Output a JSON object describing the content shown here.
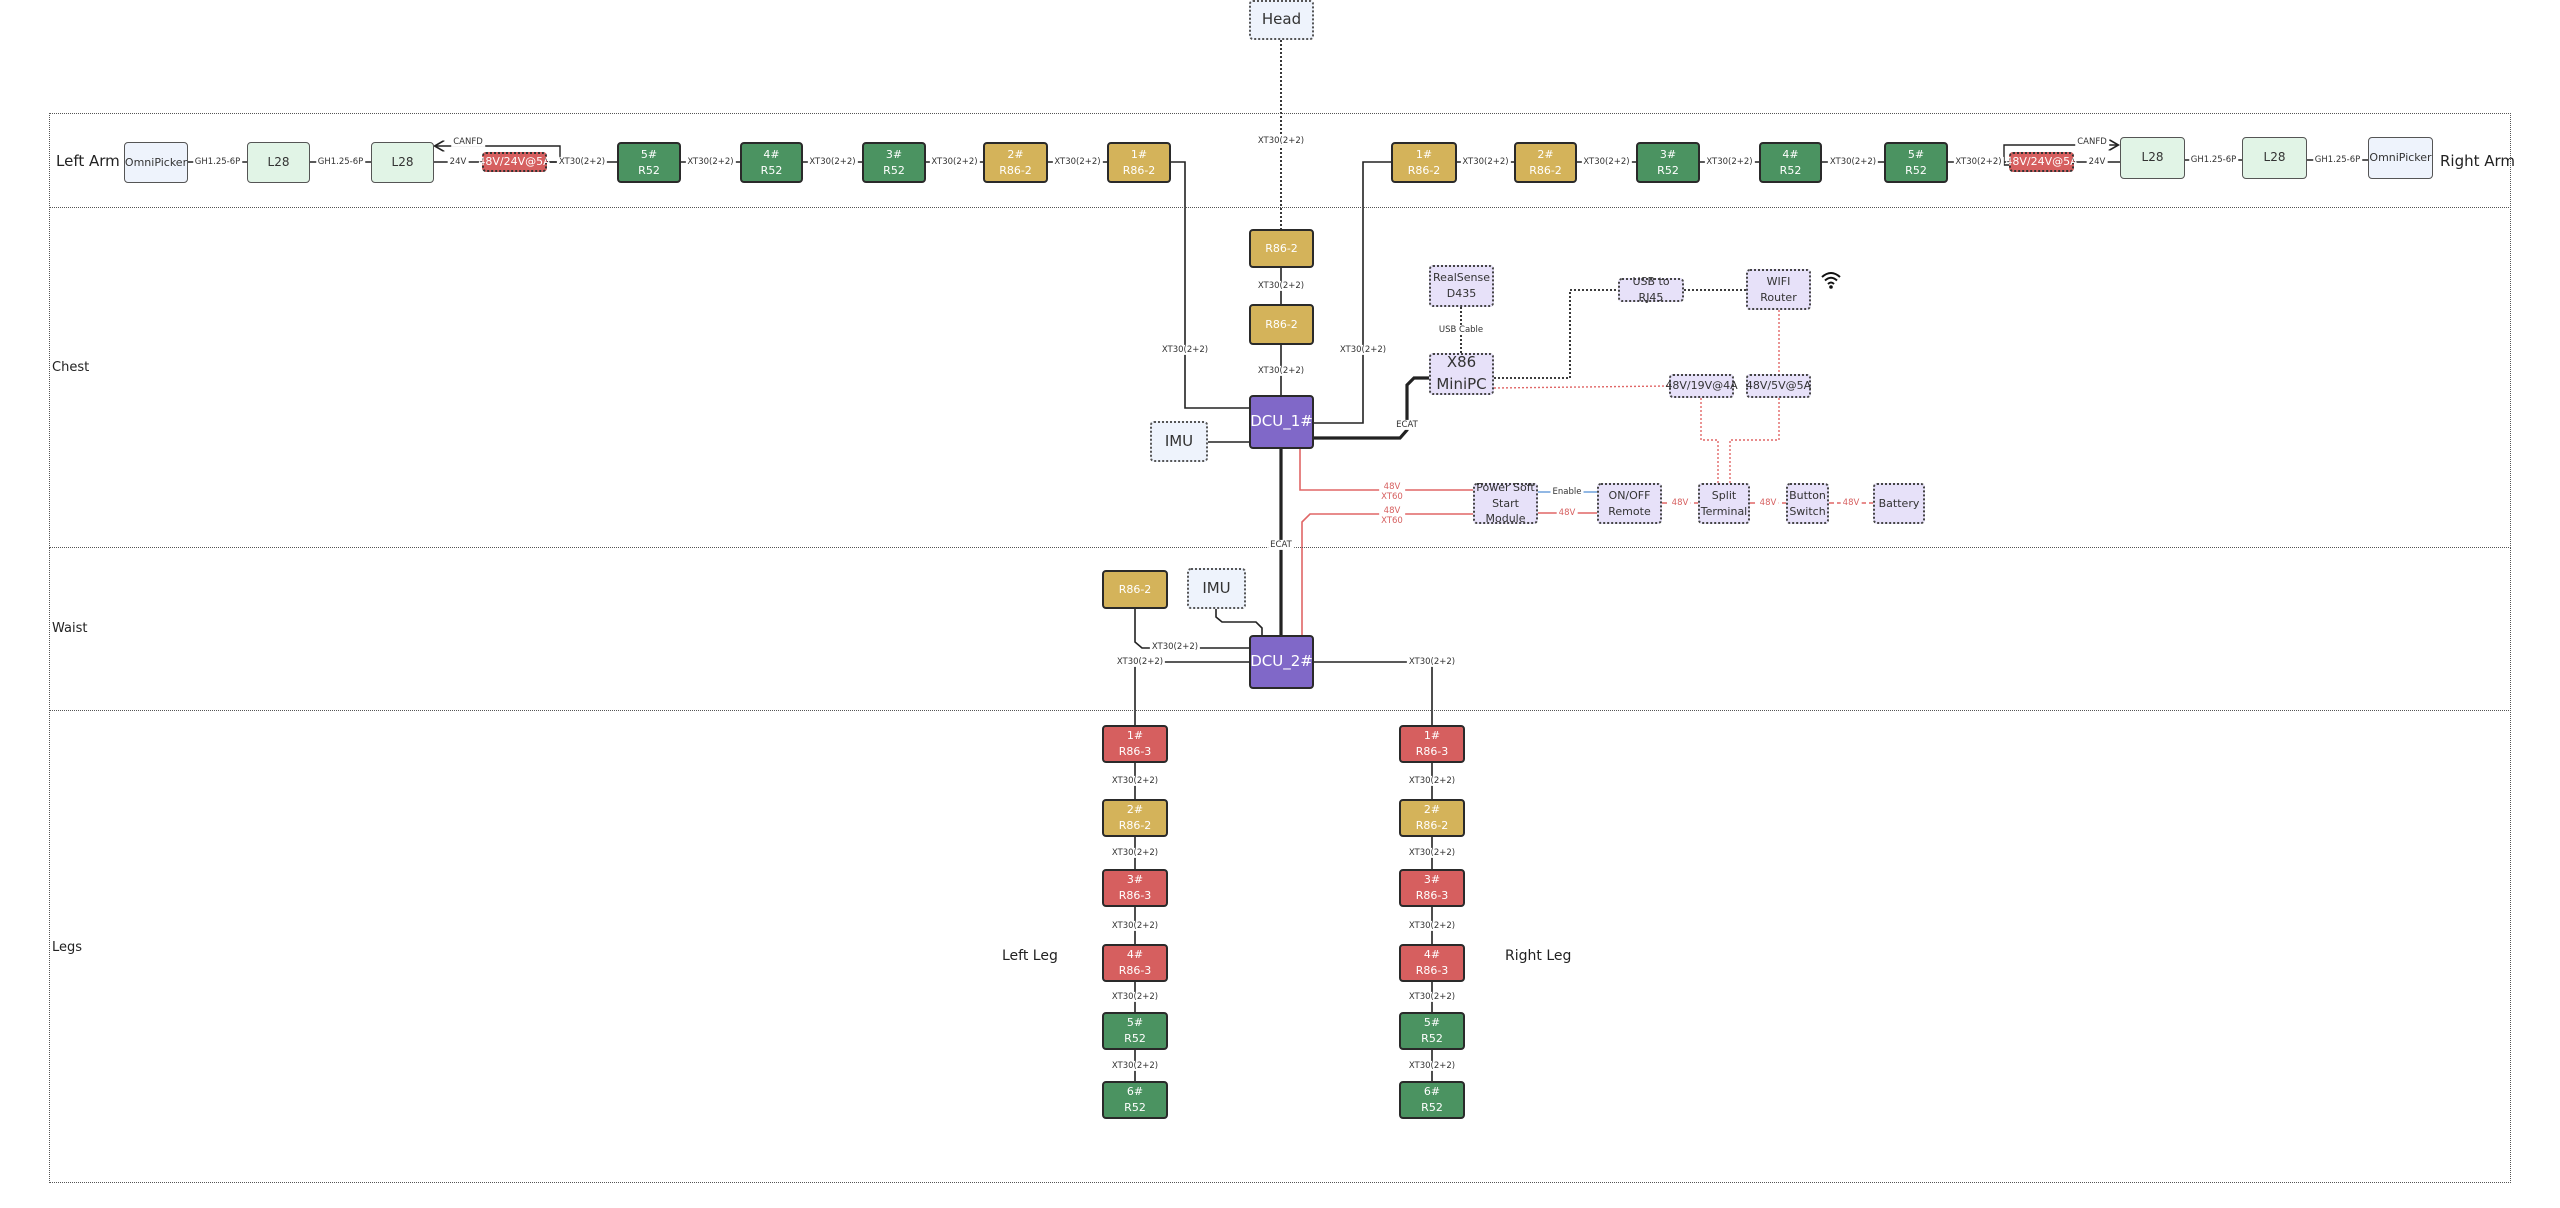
{
  "sections": {
    "left_arm": "Left Arm",
    "right_arm": "Right Arm",
    "chest": "Chest",
    "waist": "Waist",
    "legs": "Legs",
    "left_leg": "Left Leg",
    "right_leg": "Right Leg"
  },
  "colors": {
    "r52": "#4b9361",
    "r86_2": "#d4b35a",
    "r86_3": "#d65f5f",
    "dcu": "#8068c8",
    "compute": "#e7e1f9",
    "power_line": "#e06666",
    "enable_line": "#6fa0dc"
  },
  "nodes": {
    "head": {
      "lines": [
        "Head"
      ]
    },
    "la_omni": {
      "lines": [
        "OmniPicker"
      ]
    },
    "la_l28a": {
      "lines": [
        "L28"
      ]
    },
    "la_l28b": {
      "lines": [
        "L28"
      ]
    },
    "la_pwr": {
      "lines": [
        "48V/24V@5A"
      ]
    },
    "la_5": {
      "lines": [
        "5#",
        "R52"
      ]
    },
    "la_4": {
      "lines": [
        "4#",
        "R52"
      ]
    },
    "la_3": {
      "lines": [
        "3#",
        "R52"
      ]
    },
    "la_2": {
      "lines": [
        "2#",
        "R86-2"
      ]
    },
    "la_1": {
      "lines": [
        "1#",
        "R86-2"
      ]
    },
    "ra_1": {
      "lines": [
        "1#",
        "R86-2"
      ]
    },
    "ra_2": {
      "lines": [
        "2#",
        "R86-2"
      ]
    },
    "ra_3": {
      "lines": [
        "3#",
        "R52"
      ]
    },
    "ra_4": {
      "lines": [
        "4#",
        "R52"
      ]
    },
    "ra_5": {
      "lines": [
        "5#",
        "R52"
      ]
    },
    "ra_pwr": {
      "lines": [
        "48V/24V@5A"
      ]
    },
    "ra_l28a": {
      "lines": [
        "L28"
      ]
    },
    "ra_l28b": {
      "lines": [
        "L28"
      ]
    },
    "ra_omni": {
      "lines": [
        "OmniPicker"
      ]
    },
    "ch_r86a": {
      "lines": [
        "R86-2"
      ]
    },
    "ch_r86b": {
      "lines": [
        "R86-2"
      ]
    },
    "dcu1": {
      "lines": [
        "DCU_1#"
      ]
    },
    "imu1": {
      "lines": [
        "IMU"
      ]
    },
    "realsense": {
      "lines": [
        "RealSense",
        "D435"
      ]
    },
    "x86": {
      "lines": [
        "X86",
        "MiniPC"
      ]
    },
    "usb": {
      "lines": [
        "USB to RJ45"
      ]
    },
    "wifi": {
      "lines": [
        "WIFI Router"
      ]
    },
    "p19": {
      "lines": [
        "48V/19V@4A"
      ]
    },
    "p5": {
      "lines": [
        "48V/5V@5A"
      ]
    },
    "soft": {
      "lines": [
        "Power Soft",
        "Start Module"
      ]
    },
    "onoff": {
      "lines": [
        "ON/OFF",
        "Remote"
      ]
    },
    "split": {
      "lines": [
        "Split",
        "Terminal"
      ]
    },
    "btn": {
      "lines": [
        "Button",
        "Switch"
      ]
    },
    "batt": {
      "lines": [
        "Battery"
      ]
    },
    "w_r86": {
      "lines": [
        "R86-2"
      ]
    },
    "imu2": {
      "lines": [
        "IMU"
      ]
    },
    "dcu2": {
      "lines": [
        "DCU_2#"
      ]
    },
    "ll_1": {
      "lines": [
        "1#",
        "R86-3"
      ]
    },
    "ll_2": {
      "lines": [
        "2#",
        "R86-2"
      ]
    },
    "ll_3": {
      "lines": [
        "3#",
        "R86-3"
      ]
    },
    "ll_4": {
      "lines": [
        "4#",
        "R86-3"
      ]
    },
    "ll_5": {
      "lines": [
        "5#",
        "R52"
      ]
    },
    "ll_6": {
      "lines": [
        "6#",
        "R52"
      ]
    },
    "rl_1": {
      "lines": [
        "1#",
        "R86-3"
      ]
    },
    "rl_2": {
      "lines": [
        "2#",
        "R86-2"
      ]
    },
    "rl_3": {
      "lines": [
        "3#",
        "R86-3"
      ]
    },
    "rl_4": {
      "lines": [
        "4#",
        "R86-3"
      ]
    },
    "rl_5": {
      "lines": [
        "5#",
        "R52"
      ]
    },
    "rl_6": {
      "lines": [
        "6#",
        "R52"
      ]
    }
  },
  "icons": {
    "wifi": "wifi-icon"
  },
  "edges": {
    "la_omni-la_l28a": [
      "GH1.25-6P"
    ],
    "la_l28a-la_l28b": [
      "GH1.25-6P"
    ],
    "la_l28b-la_pwr": [
      "24V"
    ],
    "la_pwr-la_l28b_canfd": [
      "CANFD"
    ],
    "la_pwr-la_5": [
      "XT30(2+2)"
    ],
    "la_5-la_4": [
      "XT30(2+2)"
    ],
    "la_4-la_3": [
      "XT30(2+2)"
    ],
    "la_3-la_2": [
      "XT30(2+2)"
    ],
    "la_2-la_1": [
      "XT30(2+2)"
    ],
    "la_1-dcu1": [
      "XT30(2+2)"
    ],
    "ra_1-dcu1": [
      "XT30(2+2)"
    ],
    "ra_1-ra_2": [
      "XT30(2+2)"
    ],
    "ra_2-ra_3": [
      "XT30(2+2)"
    ],
    "ra_3-ra_4": [
      "XT30(2+2)"
    ],
    "ra_4-ra_5": [
      "XT30(2+2)"
    ],
    "ra_5-ra_pwr": [
      "XT30(2+2)"
    ],
    "ra_pwr-ra_l28a": [
      "24V"
    ],
    "ra_pwr-ra_l28a_canfd": [
      "CANFD"
    ],
    "ra_l28a-ra_l28b": [
      "GH1.25-6P"
    ],
    "ra_l28b-ra_omni": [
      "GH1.25-6P"
    ],
    "head-ch_r86a": [
      "XT30(2+2)"
    ],
    "ch_r86a-ch_r86b": [
      "XT30(2+2)"
    ],
    "ch_r86b-dcu1": [
      "XT30(2+2)"
    ],
    "dcu1-x86": [
      "ECAT"
    ],
    "realsense-x86": [
      "USB Cable"
    ],
    "dcu1-dcu2": [
      "ECAT"
    ],
    "dcu1-soft_a": [
      "48V",
      "XT60"
    ],
    "dcu2-soft_b": [
      "48V",
      "XT60"
    ],
    "soft-onoff_enable": [
      "Enable"
    ],
    "soft-onoff_power": [
      "48V"
    ],
    "onoff-split": [
      "48V"
    ],
    "split-btn": [
      "48V"
    ],
    "btn-batt": [
      "48V"
    ],
    "w_r86-dcu2": [
      "XT30(2+2)"
    ],
    "dcu2-ll_1": [
      "XT30(2+2)"
    ],
    "dcu2-rl_1": [
      "XT30(2+2)"
    ],
    "ll_1-ll_2": [
      "XT30(2+2)"
    ],
    "ll_2-ll_3": [
      "XT30(2+2)"
    ],
    "ll_3-ll_4": [
      "XT30(2+2)"
    ],
    "ll_4-ll_5": [
      "XT30(2+2)"
    ],
    "ll_5-ll_6": [
      "XT30(2+2)"
    ],
    "rl_1-rl_2": [
      "XT30(2+2)"
    ],
    "rl_2-rl_3": [
      "XT30(2+2)"
    ],
    "rl_3-rl_4": [
      "XT30(2+2)"
    ],
    "rl_4-rl_5": [
      "XT30(2+2)"
    ],
    "rl_5-rl_6": [
      "XT30(2+2)"
    ]
  }
}
